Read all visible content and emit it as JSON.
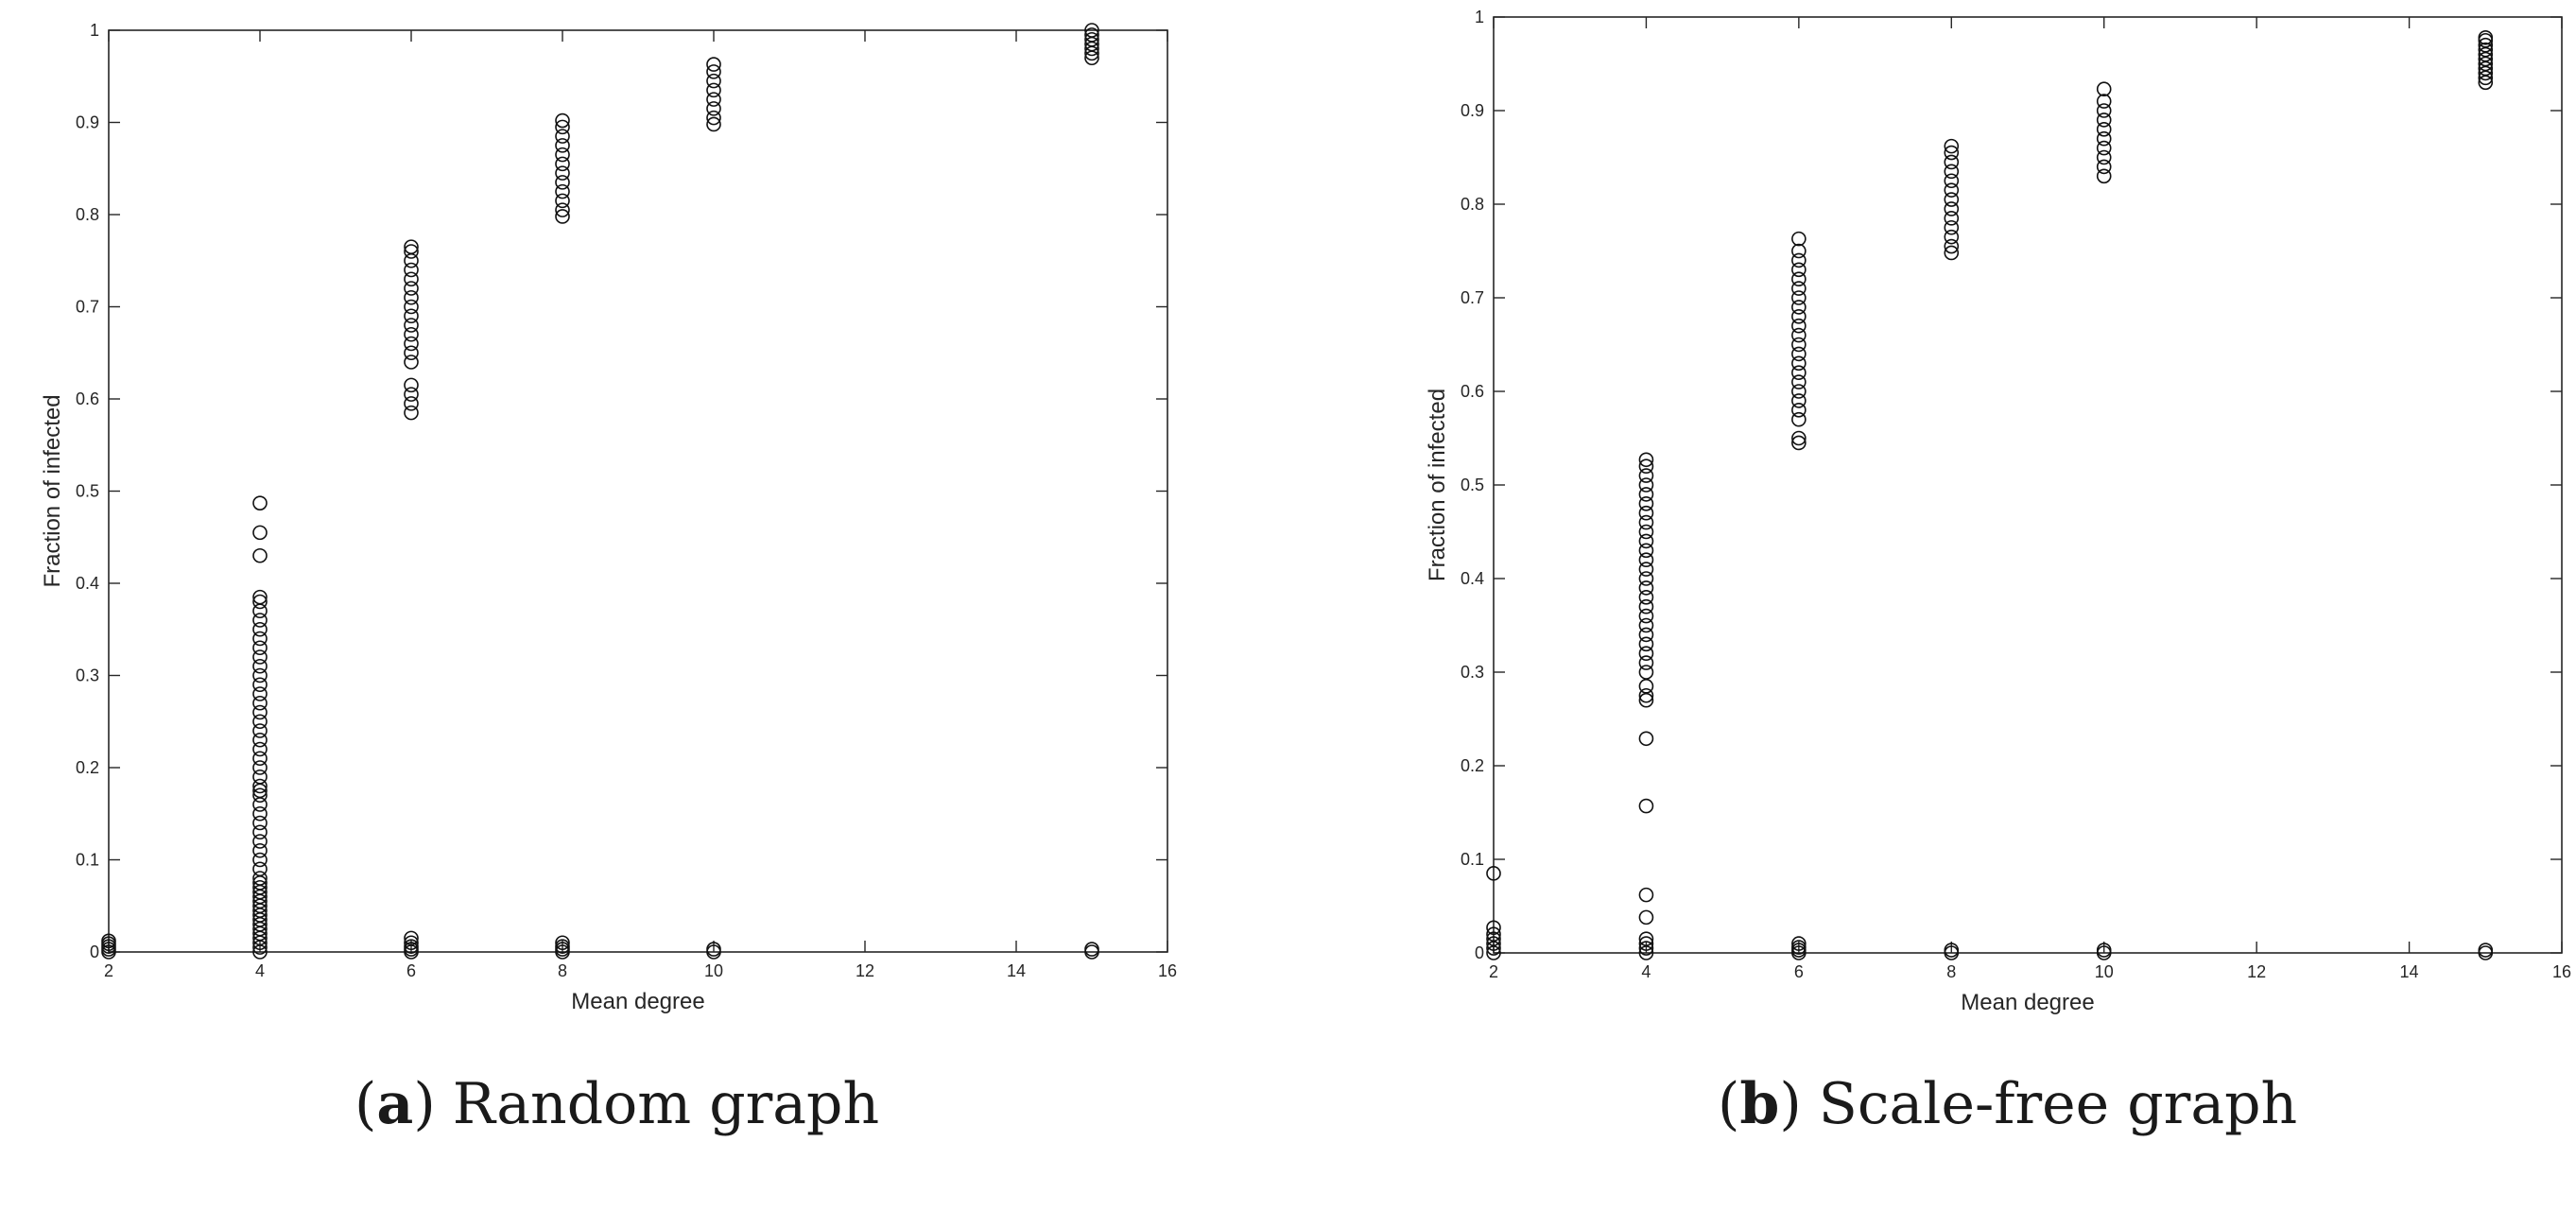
{
  "figures": [
    {
      "caption_letter": "a",
      "caption_text": "Random graph"
    },
    {
      "caption_letter": "b",
      "caption_text": "Scale-free graph"
    }
  ],
  "chart_data": [
    {
      "type": "scatter",
      "title": "",
      "xlabel": "Mean degree",
      "ylabel": "Fraction of infected",
      "xlim": [
        2,
        16
      ],
      "ylim": [
        0,
        1
      ],
      "xticks": [
        2,
        4,
        6,
        8,
        10,
        12,
        14,
        16
      ],
      "yticks": [
        0,
        0.1,
        0.2,
        0.3,
        0.4,
        0.5,
        0.6,
        0.7,
        0.8,
        0.9,
        1
      ],
      "ytick_labels": [
        "0",
        "0.1",
        "0.2",
        "0.3",
        "0.4",
        "0.5",
        "0.6",
        "0.7",
        "0.8",
        "0.9",
        "1"
      ],
      "grid": false,
      "marker": "open-circle",
      "series": [
        {
          "points": [
            [
              2,
              0.0
            ],
            [
              2,
              0.003
            ],
            [
              2,
              0.006
            ],
            [
              2,
              0.009
            ],
            [
              2,
              0.012
            ],
            [
              4,
              0.0
            ],
            [
              4,
              0.005
            ],
            [
              4,
              0.01
            ],
            [
              4,
              0.015
            ],
            [
              4,
              0.02
            ],
            [
              4,
              0.025
            ],
            [
              4,
              0.03
            ],
            [
              4,
              0.035
            ],
            [
              4,
              0.04
            ],
            [
              4,
              0.045
            ],
            [
              4,
              0.05
            ],
            [
              4,
              0.055
            ],
            [
              4,
              0.06
            ],
            [
              4,
              0.065
            ],
            [
              4,
              0.07
            ],
            [
              4,
              0.075
            ],
            [
              4,
              0.08
            ],
            [
              4,
              0.09
            ],
            [
              4,
              0.1
            ],
            [
              4,
              0.11
            ],
            [
              4,
              0.12
            ],
            [
              4,
              0.13
            ],
            [
              4,
              0.14
            ],
            [
              4,
              0.15
            ],
            [
              4,
              0.16
            ],
            [
              4,
              0.17
            ],
            [
              4,
              0.175
            ],
            [
              4,
              0.18
            ],
            [
              4,
              0.19
            ],
            [
              4,
              0.2
            ],
            [
              4,
              0.21
            ],
            [
              4,
              0.22
            ],
            [
              4,
              0.23
            ],
            [
              4,
              0.24
            ],
            [
              4,
              0.25
            ],
            [
              4,
              0.26
            ],
            [
              4,
              0.27
            ],
            [
              4,
              0.28
            ],
            [
              4,
              0.29
            ],
            [
              4,
              0.3
            ],
            [
              4,
              0.31
            ],
            [
              4,
              0.32
            ],
            [
              4,
              0.33
            ],
            [
              4,
              0.34
            ],
            [
              4,
              0.35
            ],
            [
              4,
              0.36
            ],
            [
              4,
              0.37
            ],
            [
              4,
              0.38
            ],
            [
              4,
              0.385
            ],
            [
              4,
              0.43
            ],
            [
              4,
              0.455
            ],
            [
              4,
              0.487
            ],
            [
              6,
              0.0
            ],
            [
              6,
              0.003
            ],
            [
              6,
              0.006
            ],
            [
              6,
              0.01
            ],
            [
              6,
              0.015
            ],
            [
              6,
              0.585
            ],
            [
              6,
              0.595
            ],
            [
              6,
              0.605
            ],
            [
              6,
              0.615
            ],
            [
              6,
              0.64
            ],
            [
              6,
              0.65
            ],
            [
              6,
              0.66
            ],
            [
              6,
              0.67
            ],
            [
              6,
              0.68
            ],
            [
              6,
              0.69
            ],
            [
              6,
              0.7
            ],
            [
              6,
              0.71
            ],
            [
              6,
              0.72
            ],
            [
              6,
              0.73
            ],
            [
              6,
              0.74
            ],
            [
              6,
              0.75
            ],
            [
              6,
              0.76
            ],
            [
              6,
              0.765
            ],
            [
              8,
              0.0
            ],
            [
              8,
              0.003
            ],
            [
              8,
              0.006
            ],
            [
              8,
              0.01
            ],
            [
              8,
              0.798
            ],
            [
              8,
              0.805
            ],
            [
              8,
              0.815
            ],
            [
              8,
              0.825
            ],
            [
              8,
              0.835
            ],
            [
              8,
              0.845
            ],
            [
              8,
              0.855
            ],
            [
              8,
              0.865
            ],
            [
              8,
              0.875
            ],
            [
              8,
              0.885
            ],
            [
              8,
              0.895
            ],
            [
              8,
              0.902
            ],
            [
              10,
              0.0
            ],
            [
              10,
              0.003
            ],
            [
              10,
              0.898
            ],
            [
              10,
              0.905
            ],
            [
              10,
              0.915
            ],
            [
              10,
              0.925
            ],
            [
              10,
              0.935
            ],
            [
              10,
              0.945
            ],
            [
              10,
              0.955
            ],
            [
              10,
              0.963
            ],
            [
              15,
              0.0
            ],
            [
              15,
              0.003
            ],
            [
              15,
              0.97
            ],
            [
              15,
              0.975
            ],
            [
              15,
              0.98
            ],
            [
              15,
              0.985
            ],
            [
              15,
              0.99
            ],
            [
              15,
              0.995
            ],
            [
              15,
              1.0
            ]
          ]
        }
      ]
    },
    {
      "type": "scatter",
      "title": "",
      "xlabel": "Mean degree",
      "ylabel": "Fraction of infected",
      "xlim": [
        2,
        16
      ],
      "ylim": [
        0,
        1
      ],
      "xticks": [
        2,
        4,
        6,
        8,
        10,
        12,
        14,
        16
      ],
      "yticks": [
        0,
        0.1,
        0.2,
        0.3,
        0.4,
        0.5,
        0.6,
        0.7,
        0.8,
        0.9,
        1
      ],
      "ytick_labels": [
        "0",
        "0.1",
        "0.2",
        "0.3",
        "0.4",
        "0.5",
        "0.6",
        "0.7",
        "0.8",
        "0.9",
        "1"
      ],
      "grid": false,
      "marker": "open-circle",
      "series": [
        {
          "points": [
            [
              2,
              0.0
            ],
            [
              2,
              0.005
            ],
            [
              2,
              0.01
            ],
            [
              2,
              0.015
            ],
            [
              2,
              0.02
            ],
            [
              2,
              0.027
            ],
            [
              2,
              0.085
            ],
            [
              4,
              0.0
            ],
            [
              4,
              0.005
            ],
            [
              4,
              0.01
            ],
            [
              4,
              0.015
            ],
            [
              4,
              0.038
            ],
            [
              4,
              0.062
            ],
            [
              4,
              0.157
            ],
            [
              4,
              0.229
            ],
            [
              4,
              0.27
            ],
            [
              4,
              0.275
            ],
            [
              4,
              0.285
            ],
            [
              4,
              0.3
            ],
            [
              4,
              0.31
            ],
            [
              4,
              0.32
            ],
            [
              4,
              0.33
            ],
            [
              4,
              0.34
            ],
            [
              4,
              0.35
            ],
            [
              4,
              0.36
            ],
            [
              4,
              0.37
            ],
            [
              4,
              0.38
            ],
            [
              4,
              0.39
            ],
            [
              4,
              0.4
            ],
            [
              4,
              0.41
            ],
            [
              4,
              0.42
            ],
            [
              4,
              0.43
            ],
            [
              4,
              0.44
            ],
            [
              4,
              0.45
            ],
            [
              4,
              0.46
            ],
            [
              4,
              0.47
            ],
            [
              4,
              0.48
            ],
            [
              4,
              0.49
            ],
            [
              4,
              0.5
            ],
            [
              4,
              0.51
            ],
            [
              4,
              0.52
            ],
            [
              4,
              0.527
            ],
            [
              6,
              0.0
            ],
            [
              6,
              0.003
            ],
            [
              6,
              0.006
            ],
            [
              6,
              0.01
            ],
            [
              6,
              0.545
            ],
            [
              6,
              0.55
            ],
            [
              6,
              0.57
            ],
            [
              6,
              0.58
            ],
            [
              6,
              0.59
            ],
            [
              6,
              0.6
            ],
            [
              6,
              0.61
            ],
            [
              6,
              0.62
            ],
            [
              6,
              0.63
            ],
            [
              6,
              0.64
            ],
            [
              6,
              0.65
            ],
            [
              6,
              0.66
            ],
            [
              6,
              0.67
            ],
            [
              6,
              0.68
            ],
            [
              6,
              0.69
            ],
            [
              6,
              0.7
            ],
            [
              6,
              0.71
            ],
            [
              6,
              0.72
            ],
            [
              6,
              0.73
            ],
            [
              6,
              0.74
            ],
            [
              6,
              0.75
            ],
            [
              6,
              0.763
            ],
            [
              8,
              0.0
            ],
            [
              8,
              0.003
            ],
            [
              8,
              0.748
            ],
            [
              8,
              0.755
            ],
            [
              8,
              0.765
            ],
            [
              8,
              0.775
            ],
            [
              8,
              0.785
            ],
            [
              8,
              0.795
            ],
            [
              8,
              0.805
            ],
            [
              8,
              0.815
            ],
            [
              8,
              0.825
            ],
            [
              8,
              0.835
            ],
            [
              8,
              0.845
            ],
            [
              8,
              0.855
            ],
            [
              8,
              0.862
            ],
            [
              10,
              0.0
            ],
            [
              10,
              0.003
            ],
            [
              10,
              0.83
            ],
            [
              10,
              0.84
            ],
            [
              10,
              0.85
            ],
            [
              10,
              0.86
            ],
            [
              10,
              0.87
            ],
            [
              10,
              0.88
            ],
            [
              10,
              0.89
            ],
            [
              10,
              0.9
            ],
            [
              10,
              0.91
            ],
            [
              10,
              0.923
            ],
            [
              15,
              0.0
            ],
            [
              15,
              0.003
            ],
            [
              15,
              0.93
            ],
            [
              15,
              0.935
            ],
            [
              15,
              0.94
            ],
            [
              15,
              0.945
            ],
            [
              15,
              0.95
            ],
            [
              15,
              0.955
            ],
            [
              15,
              0.96
            ],
            [
              15,
              0.965
            ],
            [
              15,
              0.97
            ],
            [
              15,
              0.975
            ],
            [
              15,
              0.978
            ]
          ]
        }
      ]
    }
  ]
}
